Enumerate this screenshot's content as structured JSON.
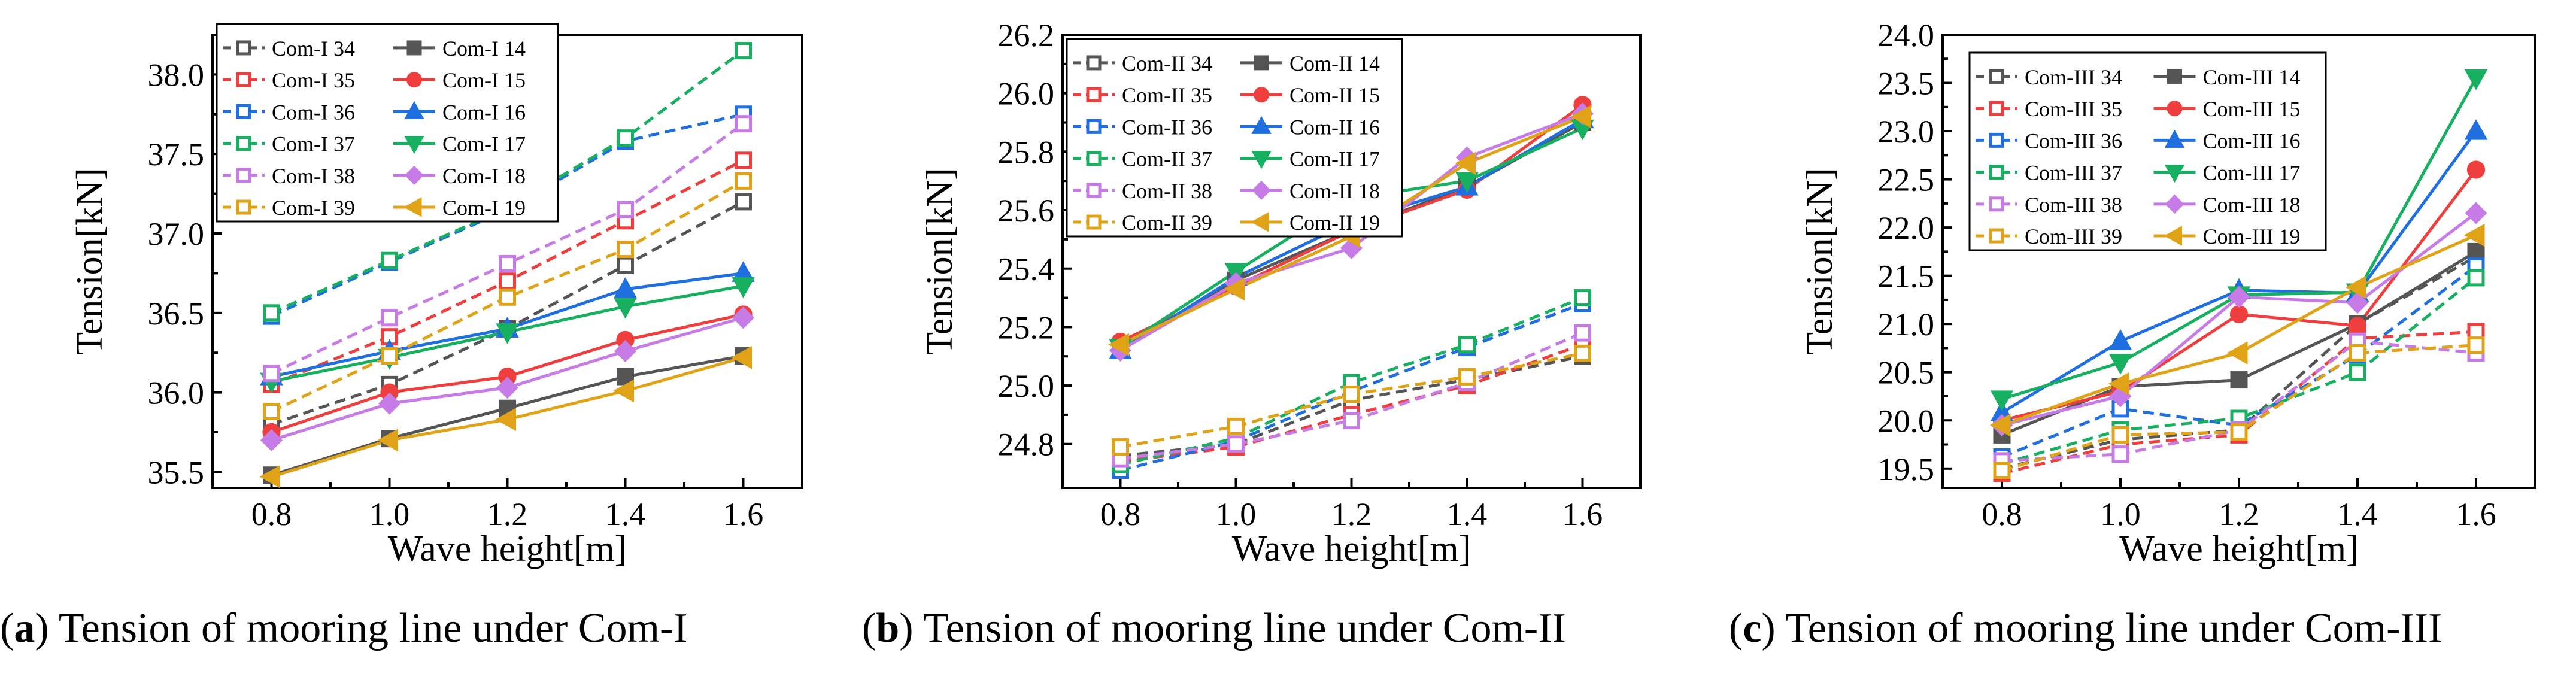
{
  "figure": {
    "captions": [
      {
        "letter": "a",
        "text": "Tension of mooring line under Com-I"
      },
      {
        "letter": "b",
        "text": "Tension of mooring line under Com-II"
      },
      {
        "letter": "c",
        "text": "Tension of mooring line under Com-III"
      }
    ]
  },
  "style": {
    "series_colors": [
      "#555555",
      "#ef3e3e",
      "#1f6fe0",
      "#16b060",
      "#c77be6",
      "#e0a216"
    ],
    "marker_pairs": [
      {
        "open": "square",
        "filled": "square"
      },
      {
        "open": "square",
        "filled": "circle"
      },
      {
        "open": "square",
        "filled": "triangle-up"
      },
      {
        "open": "square",
        "filled": "triangle-down"
      },
      {
        "open": "square",
        "filled": "diamond"
      },
      {
        "open": "square",
        "filled": "triangle-left"
      }
    ]
  },
  "chart_data": [
    {
      "type": "line",
      "title": "Tension of mooring line under Com-I",
      "xlabel": "Wave height[m]",
      "ylabel": "Tension[kN]",
      "x": [
        0.8,
        1.0,
        1.2,
        1.4,
        1.6
      ],
      "xticks": [
        "0.8",
        "1.0",
        "1.2",
        "1.4",
        "1.6"
      ],
      "xlim": [
        0.7,
        1.7
      ],
      "ylim": [
        35.4,
        38.25
      ],
      "yticks": [
        35.5,
        36.0,
        36.5,
        37.0,
        37.5,
        38.0
      ],
      "yticklabels": [
        "35.5",
        "36.0",
        "36.5",
        "37.0",
        "37.5",
        "38.0"
      ],
      "legend_position": "top-left",
      "series": [
        {
          "name": "Com-I 34",
          "dashed": true,
          "values": [
            35.8,
            36.05,
            36.4,
            36.8,
            37.2
          ]
        },
        {
          "name": "Com-I 14",
          "dashed": false,
          "values": [
            35.48,
            35.71,
            35.9,
            36.1,
            36.23
          ]
        },
        {
          "name": "Com-I 35",
          "dashed": true,
          "values": [
            36.05,
            36.35,
            36.7,
            37.08,
            37.46
          ]
        },
        {
          "name": "Com-I 15",
          "dashed": false,
          "values": [
            35.75,
            36.0,
            36.1,
            36.33,
            36.49
          ]
        },
        {
          "name": "Com-I 36",
          "dashed": true,
          "values": [
            36.48,
            36.82,
            37.15,
            37.58,
            37.75
          ]
        },
        {
          "name": "Com-I 16",
          "dashed": false,
          "values": [
            36.1,
            36.26,
            36.4,
            36.65,
            36.75
          ]
        },
        {
          "name": "Com-I 37",
          "dashed": true,
          "values": [
            36.5,
            36.83,
            37.16,
            37.6,
            38.15
          ]
        },
        {
          "name": "Com-I 17",
          "dashed": false,
          "values": [
            36.07,
            36.22,
            36.38,
            36.54,
            36.67
          ]
        },
        {
          "name": "Com-I 38",
          "dashed": true,
          "values": [
            36.12,
            36.47,
            36.81,
            37.15,
            37.69
          ]
        },
        {
          "name": "Com-I 18",
          "dashed": false,
          "values": [
            35.7,
            35.93,
            36.03,
            36.26,
            36.47
          ]
        },
        {
          "name": "Com-I 39",
          "dashed": true,
          "values": [
            35.88,
            36.23,
            36.6,
            36.9,
            37.33
          ]
        },
        {
          "name": "Com-I 19",
          "dashed": false,
          "values": [
            35.47,
            35.7,
            35.83,
            36.01,
            36.22
          ]
        }
      ]
    },
    {
      "type": "line",
      "title": "Tension of mooring line under Com-II",
      "xlabel": "Wave height[m]",
      "ylabel": "Tension[kN]",
      "x": [
        0.8,
        1.0,
        1.2,
        1.4,
        1.6
      ],
      "xticks": [
        "0.8",
        "1.0",
        "1.2",
        "1.4",
        "1.6"
      ],
      "xlim": [
        0.7,
        1.7
      ],
      "ylim": [
        24.65,
        26.2
      ],
      "yticks": [
        24.8,
        25.0,
        25.2,
        25.4,
        25.6,
        25.8,
        26.0,
        26.2
      ],
      "yticklabels": [
        "24.8",
        "25.0",
        "25.2",
        "25.4",
        "25.6",
        "25.8",
        "26.0",
        "26.2"
      ],
      "legend_position": "top-left",
      "series": [
        {
          "name": "Com-II 34",
          "dashed": true,
          "values": [
            24.76,
            24.8,
            24.95,
            25.02,
            25.1
          ]
        },
        {
          "name": "Com-II 14",
          "dashed": false,
          "values": [
            25.13,
            25.36,
            25.53,
            25.68,
            25.9
          ]
        },
        {
          "name": "Com-II 35",
          "dashed": true,
          "values": [
            24.74,
            24.79,
            24.9,
            25.0,
            25.14
          ]
        },
        {
          "name": "Com-II 15",
          "dashed": false,
          "values": [
            25.15,
            25.34,
            25.53,
            25.67,
            25.96
          ]
        },
        {
          "name": "Com-II 36",
          "dashed": true,
          "values": [
            24.71,
            24.81,
            24.98,
            25.13,
            25.28
          ]
        },
        {
          "name": "Com-II 16",
          "dashed": false,
          "values": [
            25.12,
            25.37,
            25.56,
            25.68,
            25.91
          ]
        },
        {
          "name": "Com-II 37",
          "dashed": true,
          "values": [
            24.73,
            24.82,
            25.01,
            25.14,
            25.3
          ]
        },
        {
          "name": "Com-II 17",
          "dashed": false,
          "values": [
            25.13,
            25.39,
            25.64,
            25.7,
            25.88
          ]
        },
        {
          "name": "Com-II 38",
          "dashed": true,
          "values": [
            24.75,
            24.8,
            24.88,
            25.01,
            25.18
          ]
        },
        {
          "name": "Com-II 18",
          "dashed": false,
          "values": [
            25.12,
            25.35,
            25.47,
            25.78,
            25.93
          ]
        },
        {
          "name": "Com-II 39",
          "dashed": true,
          "values": [
            24.79,
            24.86,
            24.97,
            25.03,
            25.11
          ]
        },
        {
          "name": "Com-II 19",
          "dashed": false,
          "values": [
            25.14,
            25.33,
            25.51,
            25.76,
            25.92
          ]
        }
      ]
    },
    {
      "type": "line",
      "title": "Tension of mooring line under Com-III",
      "xlabel": "Wave height[m]",
      "ylabel": "Tension[kN]",
      "x": [
        0.8,
        1.0,
        1.2,
        1.4,
        1.6
      ],
      "xticks": [
        "0.8",
        "1.0",
        "1.2",
        "1.4",
        "1.6"
      ],
      "xlim": [
        0.7,
        1.7
      ],
      "ylim": [
        19.3,
        24.0
      ],
      "yticks": [
        19.5,
        20.0,
        20.5,
        21.0,
        21.5,
        22.0,
        22.5,
        23.0,
        23.5,
        24.0
      ],
      "yticklabels": [
        "19.5",
        "20.0",
        "20.5",
        "21.0",
        "21.5",
        "22.0",
        "22.5",
        "23.0",
        "23.5",
        "24.0"
      ],
      "legend_position": "top-left",
      "series": [
        {
          "name": "Com-III 34",
          "dashed": true,
          "values": [
            19.5,
            19.8,
            19.9,
            21.0,
            21.7
          ]
        },
        {
          "name": "Com-III 14",
          "dashed": false,
          "values": [
            19.85,
            20.35,
            20.42,
            21.0,
            21.75
          ]
        },
        {
          "name": "Com-III 35",
          "dashed": true,
          "values": [
            19.45,
            19.75,
            19.85,
            20.85,
            20.92
          ]
        },
        {
          "name": "Com-III 15",
          "dashed": false,
          "values": [
            20.0,
            20.3,
            21.1,
            20.98,
            22.6
          ]
        },
        {
          "name": "Com-III 36",
          "dashed": true,
          "values": [
            19.62,
            20.12,
            19.95,
            20.68,
            21.6
          ]
        },
        {
          "name": "Com-III 16",
          "dashed": false,
          "values": [
            20.08,
            20.82,
            21.35,
            21.32,
            23.0
          ]
        },
        {
          "name": "Com-III 37",
          "dashed": true,
          "values": [
            19.55,
            19.9,
            20.02,
            20.5,
            21.48
          ]
        },
        {
          "name": "Com-III 17",
          "dashed": false,
          "values": [
            20.22,
            20.6,
            21.3,
            21.33,
            23.55
          ]
        },
        {
          "name": "Com-III 38",
          "dashed": true,
          "values": [
            19.58,
            19.65,
            19.9,
            20.82,
            20.7
          ]
        },
        {
          "name": "Com-III 18",
          "dashed": false,
          "values": [
            19.95,
            20.25,
            21.28,
            21.22,
            22.15
          ]
        },
        {
          "name": "Com-III 39",
          "dashed": true,
          "values": [
            19.48,
            19.85,
            19.88,
            20.7,
            20.78
          ]
        },
        {
          "name": "Com-III 19",
          "dashed": false,
          "values": [
            19.95,
            20.38,
            20.7,
            21.38,
            21.92
          ]
        }
      ]
    }
  ]
}
